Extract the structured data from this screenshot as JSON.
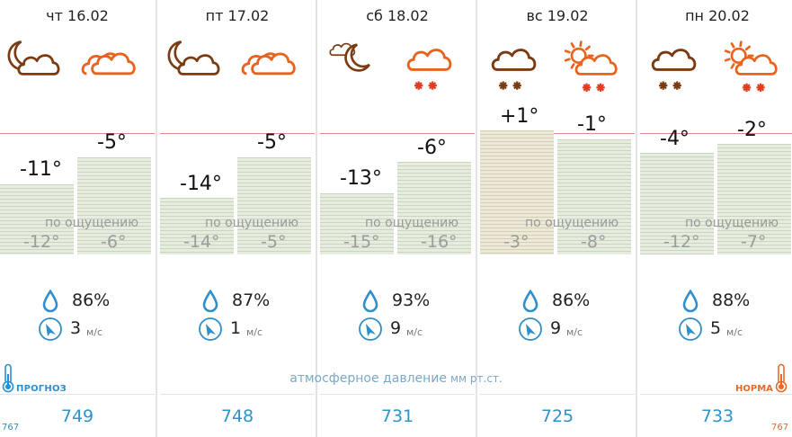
{
  "days": [
    {
      "date": "чт 16.02",
      "night_icon": "cloudy-night-icon",
      "day_icon": "overcast-icon",
      "night_temp": "-11°",
      "day_temp": "-5°",
      "feels_label": "по ощущению",
      "feels_night": "-12°",
      "feels_day": "-6°",
      "humidity": "86%",
      "wind_speed": "3",
      "wind_unit": "м/с",
      "pressure": "749"
    },
    {
      "date": "пт 17.02",
      "night_icon": "cloudy-night-icon",
      "day_icon": "overcast-icon",
      "night_temp": "-14°",
      "day_temp": "-5°",
      "feels_label": "по ощущению",
      "feels_night": "-14°",
      "feels_day": "-5°",
      "humidity": "87%",
      "wind_speed": "1",
      "wind_unit": "м/с",
      "pressure": "748"
    },
    {
      "date": "сб 18.02",
      "night_icon": "partly-cloudy-night-icon",
      "day_icon": "snow-icon",
      "night_temp": "-13°",
      "day_temp": "-6°",
      "feels_label": "по ощущению",
      "feels_night": "-15°",
      "feels_day": "-16°",
      "humidity": "93%",
      "wind_speed": "9",
      "wind_unit": "м/с",
      "pressure": "731"
    },
    {
      "date": "вс 19.02",
      "night_icon": "snow-icon",
      "day_icon": "sun-cloud-snow-icon",
      "night_temp": "+1°",
      "day_temp": "-1°",
      "feels_label": "по ощущению",
      "feels_night": "-3°",
      "feels_day": "-8°",
      "humidity": "86%",
      "wind_speed": "9",
      "wind_unit": "м/с",
      "pressure": "725"
    },
    {
      "date": "пн 20.02",
      "night_icon": "snow-icon",
      "day_icon": "sun-cloud-snow-icon",
      "night_temp": "-4°",
      "day_temp": "-2°",
      "feels_label": "по ощущению",
      "feels_night": "-12°",
      "feels_day": "-7°",
      "humidity": "88%",
      "wind_speed": "5",
      "wind_unit": "м/с",
      "pressure": "733"
    }
  ],
  "pressure_title": "атмосферное давление",
  "pressure_unit": "мм рт.ст.",
  "forecast_label": "ПРОГНОЗ",
  "norm_label": "НОРМА",
  "scale_left": "767",
  "scale_right": "767",
  "colors": {
    "night_icon": "#7a3b12",
    "day_icon": "#e8641e",
    "snow_day": "#e23b1f",
    "water": "#2f8fc8",
    "pressure": "#2c94c8",
    "bar": "#e6ecdf"
  }
}
